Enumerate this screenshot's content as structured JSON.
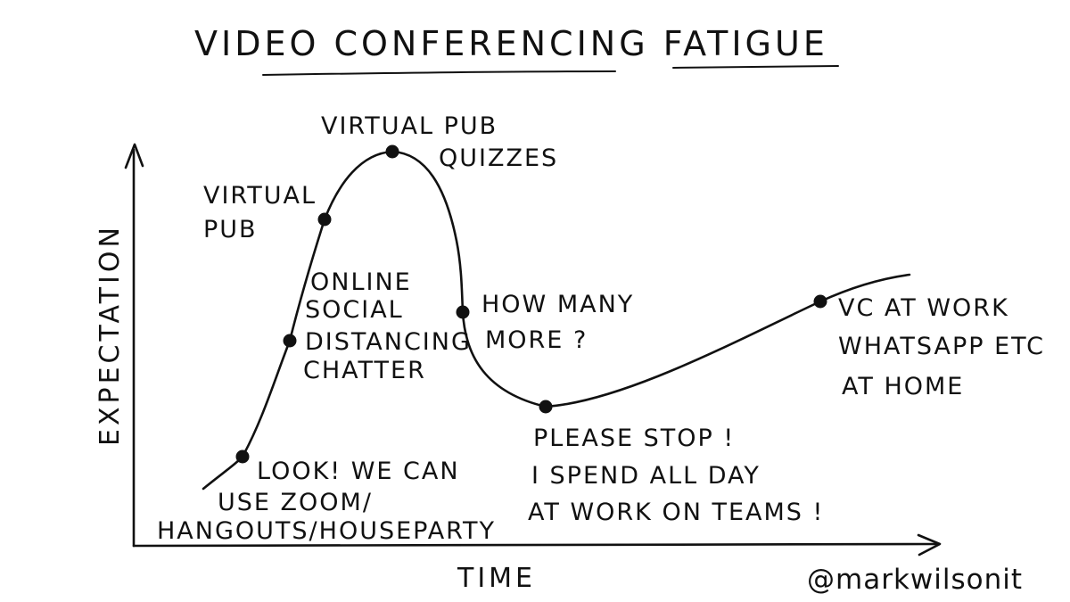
{
  "title": "VIDEO CONFERENCING FATIGUE",
  "axes": {
    "x_label": "TIME",
    "y_label": "EXPECTATION"
  },
  "credit": "@markwilsonit",
  "stages": [
    {
      "lines": [
        "LOOK! WE CAN",
        "USE ZOOM/",
        "HANGOUTS/HOUSEPARTY"
      ]
    },
    {
      "lines": [
        "ONLINE",
        "SOCIAL",
        "DISTANCING",
        "CHATTER"
      ]
    },
    {
      "lines": [
        "VIRTUAL",
        "PUB"
      ]
    },
    {
      "lines": [
        "VIRTUAL PUB",
        "QUIZZES"
      ]
    },
    {
      "lines": [
        "HOW MANY",
        "MORE ?"
      ]
    },
    {
      "lines": [
        "PLEASE STOP !",
        "I SPEND ALL DAY",
        "AT WORK ON TEAMS !"
      ]
    },
    {
      "lines": [
        "VC AT WORK",
        "WHATSAPP ETC",
        "AT HOME"
      ]
    }
  ]
}
